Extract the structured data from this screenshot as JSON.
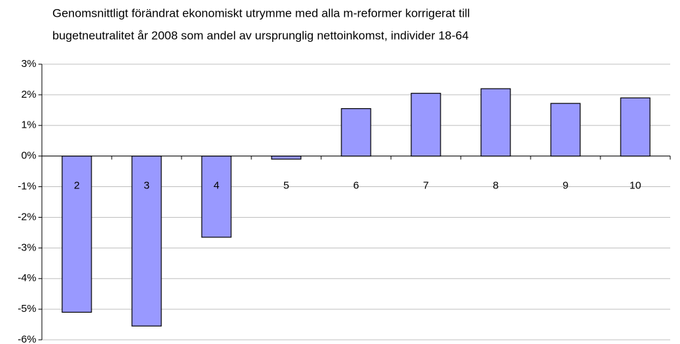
{
  "chart_data": {
    "type": "bar",
    "title": [
      "Genomsnittligt förändrat ekonomiskt utrymme med alla m-reformer korrigerat till",
      "bugetneutralitet år 2008 som andel av ursprunglig nettoinkomst, individer 18-64"
    ],
    "categories": [
      "2",
      "3",
      "4",
      "5",
      "6",
      "7",
      "8",
      "9",
      "10"
    ],
    "values": [
      -5.1,
      -5.55,
      -2.65,
      -0.1,
      1.55,
      2.05,
      2.2,
      1.72,
      1.9
    ],
    "color": "#9999ff",
    "ylim": [
      -6,
      3
    ],
    "yticks": [
      {
        "value": 3,
        "label": "3%"
      },
      {
        "value": 2,
        "label": "2%"
      },
      {
        "value": 1,
        "label": "1%"
      },
      {
        "value": 0,
        "label": "0%"
      },
      {
        "value": -1,
        "label": "-1%"
      },
      {
        "value": -2,
        "label": "-2%"
      },
      {
        "value": -3,
        "label": "-3%"
      },
      {
        "value": -4,
        "label": "-4%"
      },
      {
        "value": -5,
        "label": "-5%"
      },
      {
        "value": -6,
        "label": "-6%"
      }
    ],
    "grid": true
  }
}
